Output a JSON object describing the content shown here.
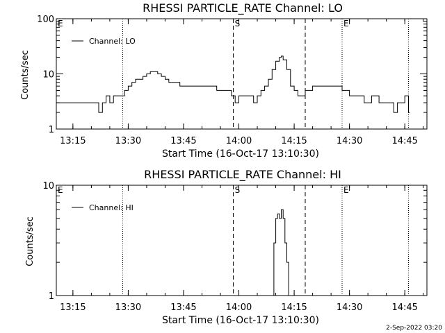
{
  "chart_data": [
    {
      "type": "line",
      "title": "RHESSI PARTICLE_RATE Channel: LO",
      "xlabel": "Start Time (16-Oct-17 13:10:30)",
      "ylabel": "Counts/sec",
      "yscale": "log",
      "xlim": [
        "13:10:30",
        "14:51:00"
      ],
      "ylim": [
        1,
        100
      ],
      "x_ticks": [
        "13:15",
        "13:30",
        "13:45",
        "14:00",
        "14:15",
        "14:30",
        "14:45"
      ],
      "y_ticks": [
        "1",
        "10",
        "100"
      ],
      "legend": {
        "label": "Channel: LO",
        "position": "top-left"
      },
      "markers": [
        {
          "label": "E",
          "time": "13:10:30",
          "style": "none"
        },
        {
          "label": "",
          "time": "13:28:30",
          "style": "dotted"
        },
        {
          "label": "S",
          "time": "13:58:30",
          "style": "dashed"
        },
        {
          "label": "",
          "time": "14:18:00",
          "style": "dashed"
        },
        {
          "label": "E",
          "time": "14:28:00",
          "style": "dotted"
        },
        {
          "label": "",
          "time": "14:46:00",
          "style": "dotted"
        }
      ],
      "series": [
        {
          "name": "Channel: LO",
          "x": [
            "13:10:30",
            "13:17:00",
            "13:21:30",
            "13:22:00",
            "13:23:00",
            "13:24:00",
            "13:25:00",
            "13:26:00",
            "13:27:00",
            "13:28:00",
            "13:29:00",
            "13:30:00",
            "13:31:00",
            "13:32:00",
            "13:33:00",
            "13:34:00",
            "13:35:00",
            "13:36:00",
            "13:37:00",
            "13:38:00",
            "13:39:00",
            "13:40:00",
            "13:41:00",
            "13:42:00",
            "13:44:00",
            "13:46:00",
            "13:48:00",
            "13:50:00",
            "13:52:00",
            "13:54:00",
            "13:56:00",
            "13:58:00",
            "13:59:00",
            "14:00:00",
            "14:01:00",
            "14:02:00",
            "14:03:00",
            "14:04:00",
            "14:05:00",
            "14:06:00",
            "14:07:00",
            "14:08:00",
            "14:09:00",
            "14:10:00",
            "14:11:00",
            "14:11:30",
            "14:12:00",
            "14:13:00",
            "14:14:00",
            "14:15:00",
            "14:16:00",
            "14:17:00",
            "14:18:00",
            "14:19:00",
            "14:20:00",
            "14:22:00",
            "14:24:00",
            "14:26:00",
            "14:27:00",
            "14:28:00",
            "14:30:00",
            "14:32:00",
            "14:34:00",
            "14:36:00",
            "14:38:00",
            "14:40:00",
            "14:41:00",
            "14:42:00",
            "14:43:00",
            "14:44:00",
            "14:45:00",
            "14:46:00"
          ],
          "values": [
            3,
            3,
            3,
            2,
            3,
            4,
            3,
            4,
            4,
            4,
            5,
            6,
            7,
            8,
            8,
            9,
            10,
            11,
            11,
            10,
            9,
            8,
            7,
            7,
            6,
            6,
            6,
            6,
            6,
            5,
            5,
            4,
            3,
            4,
            4,
            4,
            4,
            3,
            4,
            5,
            6,
            8,
            12,
            17,
            20,
            21,
            18,
            12,
            6,
            5,
            4,
            4,
            5,
            5,
            6,
            6,
            6,
            6,
            6,
            5,
            4,
            4,
            3,
            4,
            3,
            3,
            3,
            2,
            3,
            3,
            4,
            2
          ]
        }
      ]
    },
    {
      "type": "line",
      "title": "RHESSI PARTICLE_RATE Channel: HI",
      "xlabel": "Start Time (16-Oct-17 13:10:30)",
      "ylabel": "Counts/sec",
      "yscale": "log",
      "xlim": [
        "13:10:30",
        "14:51:00"
      ],
      "ylim": [
        1,
        10
      ],
      "x_ticks": [
        "13:15",
        "13:30",
        "13:45",
        "14:00",
        "14:15",
        "14:30",
        "14:45"
      ],
      "y_ticks": [
        "1",
        "10"
      ],
      "legend": {
        "label": "Channel: HI",
        "position": "top-left"
      },
      "markers": [
        {
          "label": "E",
          "time": "13:10:30",
          "style": "none"
        },
        {
          "label": "",
          "time": "13:28:30",
          "style": "dotted"
        },
        {
          "label": "S",
          "time": "13:58:30",
          "style": "dashed"
        },
        {
          "label": "",
          "time": "14:18:00",
          "style": "dashed"
        },
        {
          "label": "E",
          "time": "14:28:00",
          "style": "dotted"
        },
        {
          "label": "",
          "time": "14:46:00",
          "style": "dotted"
        }
      ],
      "series": [
        {
          "name": "Channel: HI",
          "x": [
            "14:08:30",
            "14:09:30",
            "14:10:00",
            "14:10:30",
            "14:11:00",
            "14:11:30",
            "14:12:00",
            "14:12:30",
            "14:13:00",
            "14:13:30"
          ],
          "values": [
            1,
            3,
            5,
            5.5,
            5,
            6,
            5,
            3,
            2,
            1
          ]
        }
      ]
    }
  ],
  "footer": {
    "timestamp": "2-Sep-2022 03:20"
  },
  "colors": {
    "background": "#ffffff",
    "foreground": "#000000"
  }
}
